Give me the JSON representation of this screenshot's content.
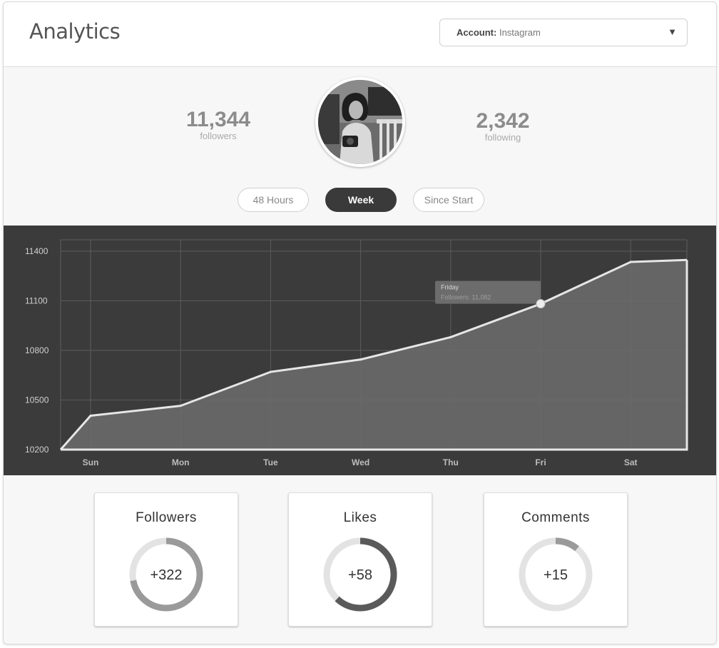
{
  "header": {
    "title": "Analytics",
    "account_label": "Account:",
    "account_value": "Instagram",
    "dropdown_arrow": "▼"
  },
  "profile": {
    "followers_count": "11,344",
    "followers_label": "followers",
    "following_count": "2,342",
    "following_label": "following",
    "avatar_icon": "user-photo"
  },
  "ranges": {
    "options": [
      "48 Hours",
      "Week",
      "Since Start"
    ],
    "selected": "Week"
  },
  "chart_data": {
    "type": "area",
    "categories": [
      "Sun",
      "Mon",
      "Tue",
      "Wed",
      "Thu",
      "Fri",
      "Sat"
    ],
    "values": [
      10405,
      10465,
      10670,
      10745,
      10880,
      11082,
      11335
    ],
    "ylim": [
      10200,
      11400
    ],
    "yticks": [
      11400,
      11100,
      10800,
      10500,
      10200
    ],
    "grid": true,
    "tooltip": {
      "title": "Friday",
      "text": "Followers: 11,082",
      "category": "Fri",
      "value": 11082
    },
    "colors": {
      "background": "#3b3b3b",
      "fill": "#6a6a6a",
      "line": "#e6e6e6",
      "grid": "#5c5c5c"
    }
  },
  "tiles": [
    {
      "title": "Followers",
      "value": "+322",
      "progress": 0.72,
      "arc_color": "#9a9a9a"
    },
    {
      "title": "Likes",
      "value": "+58",
      "progress": 0.62,
      "arc_color": "#5a5a5a"
    },
    {
      "title": "Comments",
      "value": "+15",
      "progress": 0.11,
      "arc_color": "#9a9a9a"
    }
  ]
}
